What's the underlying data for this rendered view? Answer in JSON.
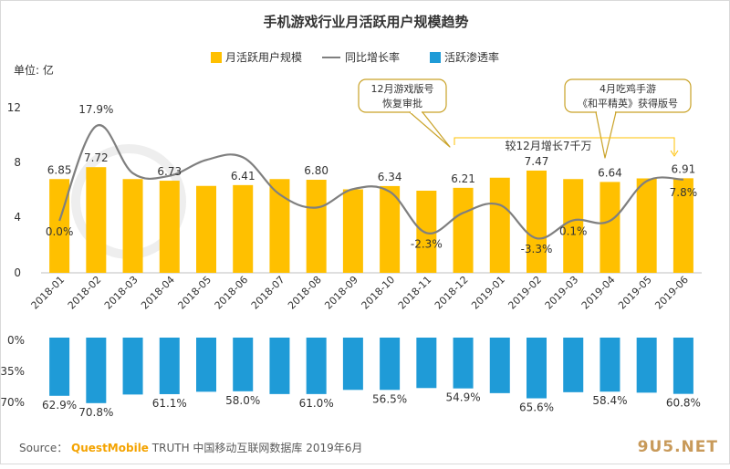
{
  "chart_data": [
    {
      "type": "bar+line",
      "title": "手机游戏行业月活跃用户规模趋势",
      "unit_label": "单位: 亿",
      "legend_position": "top",
      "categories": [
        "2018-01",
        "2018-02",
        "2018-03",
        "2018-04",
        "2018-05",
        "2018-06",
        "2018-07",
        "2018-08",
        "2018-09",
        "2018-10",
        "2018-11",
        "2018-12",
        "2019-01",
        "2019-02",
        "2019-03",
        "2019-04",
        "2019-05",
        "2019-06"
      ],
      "ylim": [
        0,
        12
      ],
      "yticks": [
        "0",
        "4",
        "8",
        "12"
      ],
      "y2lim": [
        -5,
        20
      ],
      "series": [
        {
          "name": "月活跃用户规模",
          "kind": "bar",
          "color": "#ffc000",
          "values": [
            6.85,
            7.72,
            6.85,
            6.73,
            6.35,
            6.41,
            6.85,
            6.8,
            6.1,
            6.34,
            6.0,
            6.21,
            6.95,
            7.47,
            6.85,
            6.64,
            6.9,
            6.91
          ],
          "labels": [
            "6.85",
            "7.72",
            "",
            "6.73",
            "",
            "6.41",
            "",
            "6.80",
            "",
            "6.34",
            "",
            "6.21",
            "",
            "7.47",
            "",
            "6.64",
            "",
            "6.91"
          ]
        },
        {
          "name": "同比增长率",
          "kind": "line",
          "color": "#7f7f7f",
          "values": [
            0.0,
            17.9,
            9.0,
            8.5,
            11.5,
            12.0,
            5.0,
            2.5,
            6.0,
            5.5,
            -2.3,
            1.5,
            3.0,
            -3.3,
            0.1,
            0.0,
            7.5,
            7.8
          ],
          "labels": [
            "0.0%",
            "17.9%",
            "",
            "",
            "",
            "",
            "",
            "",
            "",
            "",
            "-2.3%",
            "",
            "",
            "-3.3%",
            "0.1%",
            "",
            "",
            "7.8%"
          ]
        }
      ],
      "annotations": [
        {
          "text_lines": [
            "12月游戏版号",
            "恢复审批"
          ],
          "target": "2018-12"
        },
        {
          "text_lines": [
            "4月吃鸡手游",
            "《和平精英》获得版号"
          ],
          "target": "2019-04"
        },
        {
          "text": "较12月增长7千万",
          "from": "2018-12",
          "to": "2019-06"
        }
      ]
    },
    {
      "type": "bar",
      "series": [
        {
          "name": "活跃渗透率",
          "color": "#1f9bd7",
          "values": [
            62.9,
            70.8,
            61.5,
            61.1,
            58.5,
            58.0,
            61.0,
            61.0,
            56.5,
            56.5,
            54.5,
            54.9,
            60.0,
            65.6,
            59.0,
            58.4,
            59.5,
            60.8
          ],
          "labels": [
            "62.9%",
            "70.8%",
            "",
            "61.1%",
            "",
            "58.0%",
            "",
            "61.0%",
            "",
            "56.5%",
            "",
            "54.9%",
            "",
            "65.6%",
            "",
            "58.4%",
            "",
            "60.8%"
          ]
        }
      ],
      "ylim": [
        0,
        70
      ],
      "yticks": [
        "0%",
        "35%",
        "70%"
      ]
    }
  ],
  "source": {
    "prefix": "Source：",
    "brand": "QuestMobile",
    "rest": "TRUTH 中国移动互联网数据库 2019年6月"
  },
  "watermark": {
    "text": "9U5.NET"
  }
}
